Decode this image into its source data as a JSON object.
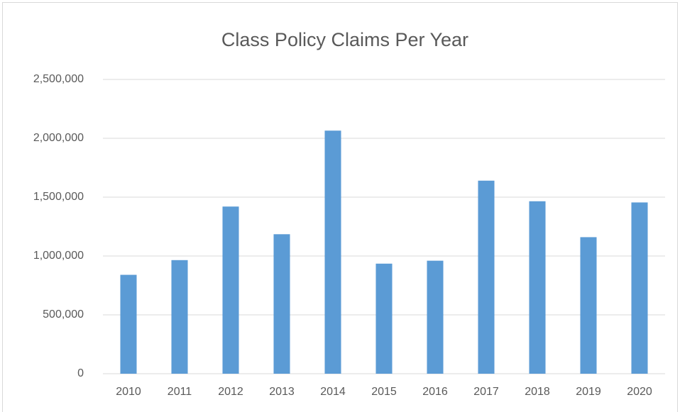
{
  "chart_data": {
    "type": "bar",
    "title": "Class Policy Claims Per Year",
    "categories": [
      "2010",
      "2011",
      "2012",
      "2013",
      "2014",
      "2015",
      "2016",
      "2017",
      "2018",
      "2019",
      "2020"
    ],
    "values": [
      840000,
      965000,
      1420000,
      1185000,
      2065000,
      935000,
      960000,
      1640000,
      1465000,
      1160000,
      1455000
    ],
    "color": "#5b9bd5",
    "ylim": [
      0,
      2500000
    ],
    "yticks": [
      0,
      {
        "value": 500000,
        "label": "500,000"
      },
      {
        "value": 1000000,
        "label": "1,000,000"
      },
      {
        "value": 1500000,
        "label": "1,500,000"
      },
      {
        "value": 2000000,
        "label": "2,000,000"
      },
      {
        "value": 2500000,
        "label": "2,500,000"
      }
    ],
    "grid": true
  }
}
